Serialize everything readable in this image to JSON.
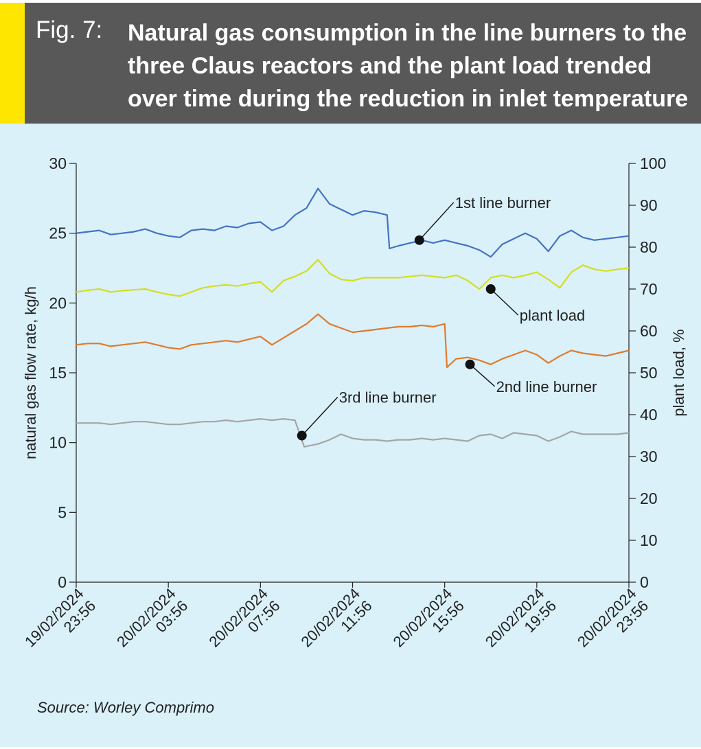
{
  "figure": {
    "label": "Fig. 7:",
    "title": "Natural gas consumption in the line burners to the three Claus reactors and the plant load trended over time during the reduction in inlet temperature test",
    "source": "Source: Worley Comprimo"
  },
  "colors": {
    "header_bg": "#585858",
    "accent": "#ffe600",
    "panel_bg": "#daf1f9",
    "first_line_burner": "#4472c4",
    "plant_load": "#d5de1e",
    "second_line_burner": "#e07b2c",
    "third_line_burner": "#a5a5a5"
  },
  "chart_data": {
    "type": "line",
    "y_label": "natural gas flow rate, kg/h",
    "y2_label": "plant load, %",
    "y_ticks": [
      "0",
      "5",
      "10",
      "15",
      "20",
      "25",
      "30"
    ],
    "y2_ticks": [
      "0",
      "10",
      "20",
      "30",
      "40",
      "50",
      "60",
      "70",
      "80",
      "90",
      "100"
    ],
    "x_ticks": [
      [
        "19/02/2024",
        "23:56"
      ],
      [
        "20/02/2024",
        "03:56"
      ],
      [
        "20/02/2024",
        "07:56"
      ],
      [
        "20/02/2024",
        "11:56"
      ],
      [
        "20/02/2024",
        "15:56"
      ],
      [
        "20/02/2024",
        "19:56"
      ],
      [
        "20/02/2024",
        "23:56"
      ]
    ],
    "x_range_hours": [
      0,
      24
    ],
    "ylim": [
      0,
      30
    ],
    "y2lim": [
      0,
      100
    ],
    "x_unit_note": "hours",
    "series": [
      {
        "name": "1st line burner",
        "axis": "left",
        "x": [
          0,
          0.5,
          1,
          1.5,
          2,
          2.5,
          3,
          3.5,
          4,
          4.5,
          5,
          5.5,
          6,
          6.5,
          7,
          7.5,
          8,
          8.5,
          9,
          9.5,
          10,
          10.5,
          11,
          11.5,
          12,
          12.5,
          13,
          13.5,
          13.6,
          14,
          14.5,
          15,
          15.5,
          16,
          16.5,
          17,
          17.5,
          18,
          18.5,
          19,
          19.5,
          20,
          20.5,
          21,
          21.5,
          22,
          22.5,
          23,
          23.5,
          24
        ],
        "values": [
          25.0,
          25.1,
          25.2,
          24.9,
          25.0,
          25.1,
          25.3,
          25.0,
          24.8,
          24.7,
          25.2,
          25.3,
          25.2,
          25.5,
          25.4,
          25.7,
          25.8,
          25.2,
          25.5,
          26.3,
          26.8,
          28.2,
          27.1,
          26.7,
          26.3,
          26.6,
          26.5,
          26.3,
          23.9,
          24.1,
          24.3,
          24.5,
          24.3,
          24.5,
          24.3,
          24.1,
          23.8,
          23.3,
          24.2,
          24.6,
          25.0,
          24.6,
          23.7,
          24.8,
          25.2,
          24.7,
          24.5,
          24.6,
          24.7,
          24.8
        ]
      },
      {
        "name": "plant load",
        "axis": "right",
        "x": [
          0,
          0.5,
          1,
          1.5,
          2,
          2.5,
          3,
          3.5,
          4,
          4.5,
          5,
          5.5,
          6,
          6.5,
          7,
          7.5,
          8,
          8.5,
          9,
          9.5,
          10,
          10.5,
          11,
          11.5,
          12,
          12.5,
          13,
          13.5,
          14,
          14.5,
          15,
          15.5,
          16,
          16.5,
          17,
          17.5,
          18,
          18.5,
          19,
          19.5,
          20,
          20.5,
          21,
          21.5,
          22,
          22.5,
          23,
          23.5,
          24
        ],
        "values": [
          69.3,
          69.7,
          70.0,
          69.3,
          69.6,
          69.8,
          70.0,
          69.3,
          68.7,
          68.3,
          69.3,
          70.3,
          70.7,
          71.0,
          70.7,
          71.3,
          71.7,
          69.3,
          72.0,
          73.0,
          74.3,
          77.0,
          73.7,
          72.3,
          72.0,
          72.7,
          72.7,
          72.7,
          72.7,
          73.0,
          73.3,
          73.0,
          72.7,
          73.3,
          72.0,
          70.0,
          72.7,
          73.3,
          72.7,
          73.3,
          74.0,
          72.3,
          70.3,
          74.0,
          75.7,
          74.7,
          74.3,
          74.7,
          75.0
        ]
      },
      {
        "name": "2nd line burner",
        "axis": "left",
        "x": [
          0,
          0.5,
          1,
          1.5,
          2,
          2.5,
          3,
          3.5,
          4,
          4.5,
          5,
          5.5,
          6,
          6.5,
          7,
          7.5,
          8,
          8.5,
          9,
          9.5,
          10,
          10.5,
          11,
          11.5,
          12,
          12.5,
          13,
          13.5,
          14,
          14.5,
          15,
          15.5,
          16,
          16.1,
          16.5,
          17,
          17.5,
          18,
          18.5,
          19,
          19.5,
          20,
          20.5,
          21,
          21.5,
          22,
          22.5,
          23,
          23.5,
          24
        ],
        "values": [
          17.0,
          17.1,
          17.1,
          16.9,
          17.0,
          17.1,
          17.2,
          17.0,
          16.8,
          16.7,
          17.0,
          17.1,
          17.2,
          17.3,
          17.2,
          17.4,
          17.6,
          17.0,
          17.5,
          18.0,
          18.5,
          19.2,
          18.5,
          18.2,
          17.9,
          18.0,
          18.1,
          18.2,
          18.3,
          18.3,
          18.4,
          18.3,
          18.5,
          15.4,
          16.0,
          16.1,
          15.9,
          15.6,
          16.0,
          16.3,
          16.6,
          16.3,
          15.7,
          16.2,
          16.6,
          16.4,
          16.3,
          16.2,
          16.4,
          16.6
        ]
      },
      {
        "name": "3rd line burner",
        "axis": "left",
        "x": [
          0,
          0.5,
          1,
          1.5,
          2,
          2.5,
          3,
          3.5,
          4,
          4.5,
          5,
          5.5,
          6,
          6.5,
          7,
          7.5,
          8,
          8.5,
          9,
          9.5,
          9.9,
          10.5,
          11,
          11.5,
          12,
          12.5,
          13,
          13.5,
          14,
          14.5,
          15,
          15.5,
          16,
          16.5,
          17,
          17.5,
          18,
          18.5,
          19,
          19.5,
          20,
          20.5,
          21,
          21.5,
          22,
          22.5,
          23,
          23.5,
          24
        ],
        "values": [
          11.4,
          11.4,
          11.4,
          11.3,
          11.4,
          11.5,
          11.5,
          11.4,
          11.3,
          11.3,
          11.4,
          11.5,
          11.5,
          11.6,
          11.5,
          11.6,
          11.7,
          11.6,
          11.7,
          11.6,
          9.7,
          9.9,
          10.2,
          10.6,
          10.3,
          10.2,
          10.2,
          10.1,
          10.2,
          10.2,
          10.3,
          10.2,
          10.3,
          10.2,
          10.1,
          10.5,
          10.6,
          10.3,
          10.7,
          10.6,
          10.5,
          10.1,
          10.4,
          10.8,
          10.6,
          10.6,
          10.6,
          10.6,
          10.7
        ]
      }
    ],
    "annotations": [
      {
        "text": "1st line burner",
        "series": 0,
        "x": 14.9,
        "y": 24.5
      },
      {
        "text": "plant load",
        "series": 1,
        "x": 18.0,
        "y": 70.0
      },
      {
        "text": "2nd line burner",
        "series": 2,
        "x": 17.1,
        "y": 15.6
      },
      {
        "text": "3rd line burner",
        "series": 3,
        "x": 9.8,
        "y": 10.5
      }
    ]
  }
}
